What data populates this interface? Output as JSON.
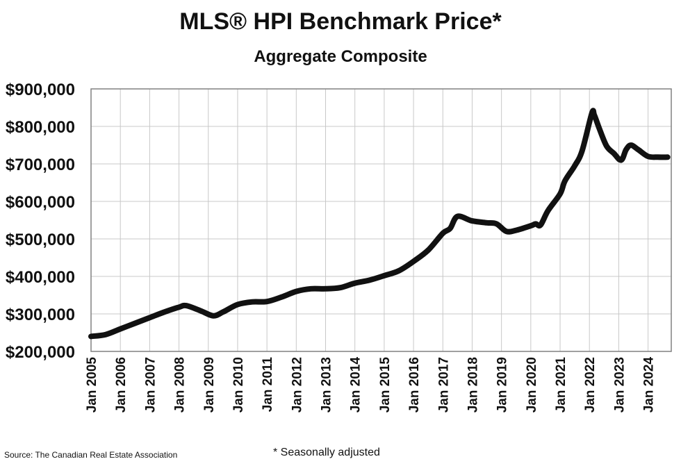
{
  "chart_data": {
    "type": "line",
    "title": "MLS® HPI Benchmark Price*",
    "subtitle": "Aggregate Composite",
    "ylim": [
      200000,
      900000
    ],
    "y_ticks": [
      200000,
      300000,
      400000,
      500000,
      600000,
      700000,
      800000,
      900000
    ],
    "y_tick_labels": [
      "$200,000",
      "$300,000",
      "$400,000",
      "$500,000",
      "$600,000",
      "$700,000",
      "$800,000",
      "$900,000"
    ],
    "x_tick_labels": [
      "Jan 2005",
      "Jan 2006",
      "Jan 2007",
      "Jan 2008",
      "Jan 2009",
      "Jan 2010",
      "Jan 2011",
      "Jan 2012",
      "Jan 2013",
      "Jan 2014",
      "Jan 2015",
      "Jan 2016",
      "Jan 2017",
      "Jan 2018",
      "Jan 2019",
      "Jan 2020",
      "Jan 2021",
      "Jan 2022",
      "Jan 2023",
      "Jan 2024"
    ],
    "grid": true,
    "line_color": "#111111",
    "series": [
      {
        "x": [
          "2005-01",
          "2005-07",
          "2006-01",
          "2006-07",
          "2007-01",
          "2007-07",
          "2008-01",
          "2008-04",
          "2008-10",
          "2009-03",
          "2009-07",
          "2010-01",
          "2010-07",
          "2011-01",
          "2011-07",
          "2012-01",
          "2012-07",
          "2013-01",
          "2013-07",
          "2014-01",
          "2014-07",
          "2015-01",
          "2015-07",
          "2016-01",
          "2016-07",
          "2017-01",
          "2017-04",
          "2017-07",
          "2018-01",
          "2018-07",
          "2018-11",
          "2019-03",
          "2019-07",
          "2020-01",
          "2020-03",
          "2020-05",
          "2020-08",
          "2021-01",
          "2021-03",
          "2021-07",
          "2021-10",
          "2022-02",
          "2022-03",
          "2022-05",
          "2022-08",
          "2022-11",
          "2023-02",
          "2023-04",
          "2023-06",
          "2023-09",
          "2024-01",
          "2024-05",
          "2024-09"
        ],
        "values": [
          240000,
          245000,
          260000,
          275000,
          290000,
          305000,
          318000,
          322000,
          308000,
          295000,
          305000,
          325000,
          332000,
          333000,
          345000,
          360000,
          367000,
          367000,
          370000,
          382000,
          390000,
          402000,
          415000,
          440000,
          470000,
          515000,
          528000,
          560000,
          548000,
          543000,
          540000,
          520000,
          523000,
          535000,
          540000,
          537000,
          575000,
          620000,
          655000,
          695000,
          735000,
          835000,
          830000,
          795000,
          748000,
          728000,
          710000,
          738000,
          750000,
          738000,
          720000,
          718000,
          718000
        ]
      }
    ]
  },
  "source": "Source: The Canadian Real Estate Association",
  "note": "* Seasonally adjusted"
}
